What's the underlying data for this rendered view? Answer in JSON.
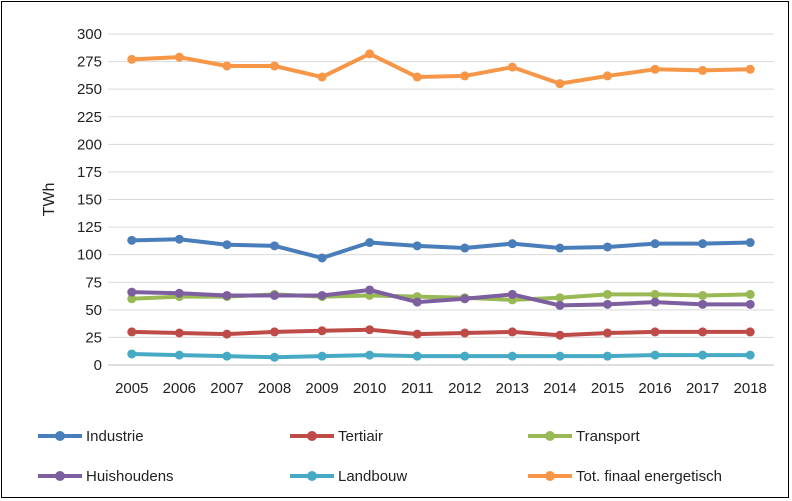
{
  "chart_data": {
    "type": "line",
    "title": "",
    "xlabel": "",
    "ylabel": "TWh",
    "ylim": [
      0,
      300
    ],
    "ytick_step": 25,
    "grid": "horizontal",
    "legend_position": "bottom",
    "categories": [
      "2005",
      "2006",
      "2007",
      "2008",
      "2009",
      "2010",
      "2011",
      "2012",
      "2013",
      "2014",
      "2015",
      "2016",
      "2017",
      "2018"
    ],
    "series": [
      {
        "name": "Industrie",
        "color": "#4a7ebb",
        "values": [
          113,
          114,
          109,
          108,
          97,
          111,
          108,
          106,
          110,
          106,
          107,
          110,
          110,
          111
        ]
      },
      {
        "name": "Tertiair",
        "color": "#be4b48",
        "values": [
          30,
          29,
          28,
          30,
          31,
          32,
          28,
          29,
          30,
          27,
          29,
          30,
          30,
          30
        ]
      },
      {
        "name": "Transport",
        "color": "#98b954",
        "values": [
          60,
          62,
          62,
          64,
          62,
          63,
          62,
          61,
          59,
          61,
          64,
          64,
          63,
          64
        ]
      },
      {
        "name": "Huishoudens",
        "color": "#7d5fa0",
        "values": [
          66,
          65,
          63,
          63,
          63,
          68,
          57,
          60,
          64,
          54,
          55,
          57,
          55,
          55
        ]
      },
      {
        "name": "Landbouw",
        "color": "#46aac5",
        "values": [
          10,
          9,
          8,
          7,
          8,
          9,
          8,
          8,
          8,
          8,
          8,
          9,
          9,
          9
        ]
      },
      {
        "name": "Tot. finaal energetisch",
        "color": "#f79646",
        "values": [
          277,
          279,
          271,
          271,
          261,
          282,
          261,
          262,
          270,
          255,
          262,
          268,
          267,
          268
        ]
      }
    ]
  }
}
